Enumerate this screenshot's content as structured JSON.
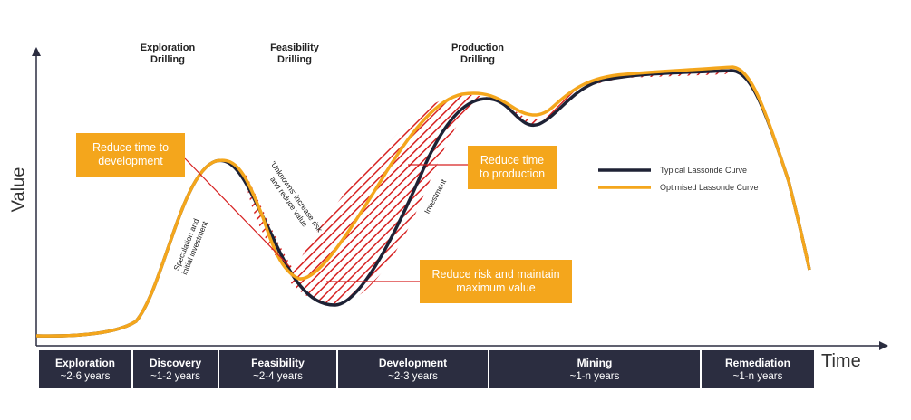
{
  "axes": {
    "y_label": "Value",
    "x_label": "Time"
  },
  "drilling": [
    {
      "label": "Exploration\nDrilling"
    },
    {
      "label": "Feasibility\nDrilling"
    },
    {
      "label": "Production\nDrilling"
    }
  ],
  "callouts": {
    "development": "Reduce time to\ndevelopment",
    "production": "Reduce time\nto production",
    "risk": "Reduce risk and maintain\nmaximum value"
  },
  "annotations": {
    "speculation": "Speculation and\ninitial investment",
    "unknowns": "'Unknowns' increase risk\nand reduce value",
    "investment": "Investment"
  },
  "legend": {
    "typical": {
      "label": "Typical Lassonde Curve",
      "color": "#1e2235"
    },
    "optimised": {
      "label": "Optimised Lassonde Curve",
      "color": "#f4a61c"
    }
  },
  "phases": [
    {
      "name": "Exploration",
      "duration": "~2-6 years"
    },
    {
      "name": "Discovery",
      "duration": "~1-2 years"
    },
    {
      "name": "Feasibility",
      "duration": "~2-4 years"
    },
    {
      "name": "Development",
      "duration": "~2-3 years"
    },
    {
      "name": "Mining",
      "duration": "~1-n years"
    },
    {
      "name": "Remediation",
      "duration": "~1-n years"
    }
  ],
  "colors": {
    "accent": "#f4a61c",
    "dark": "#1e2235",
    "hatch": "#d62020"
  }
}
